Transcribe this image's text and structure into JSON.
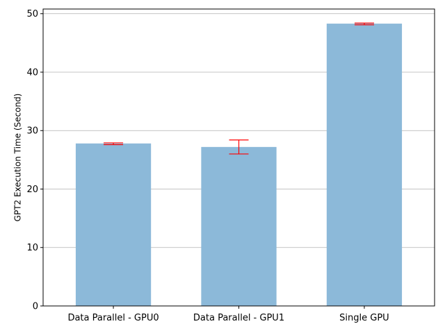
{
  "chart_data": {
    "type": "bar",
    "categories": [
      "Data Parallel - GPU0",
      "Data Parallel - GPU1",
      "Single GPU"
    ],
    "values": [
      27.8,
      27.2,
      48.3
    ],
    "error_low": [
      27.6,
      26.0,
      48.1
    ],
    "error_high": [
      27.9,
      28.4,
      48.4
    ],
    "xlabel": "",
    "ylabel": "GPT2 Execution Time (Second)",
    "ylim": [
      0,
      50.8
    ],
    "yticks": [
      0,
      10,
      20,
      30,
      40,
      50
    ],
    "grid": "y",
    "colors": {
      "bar": "#8cb9d9",
      "error": "#ff0000",
      "grid": "#b0b0b0",
      "axis": "#000000"
    }
  }
}
